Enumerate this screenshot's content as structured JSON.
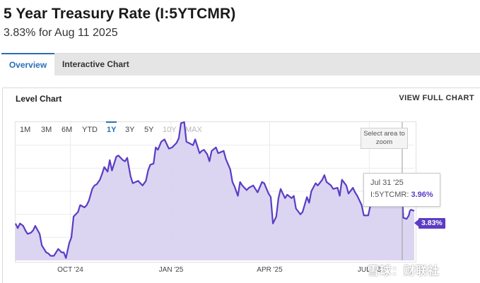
{
  "page": {
    "title": "5 Year Treasury Rate (I:5YTCMR)",
    "subtitle": "3.83% for Aug 11 2025"
  },
  "tabs": [
    {
      "label": "Overview",
      "active": true
    },
    {
      "label": "Interactive Chart",
      "active": false
    }
  ],
  "panel": {
    "title": "Level Chart",
    "view_full": "VIEW FULL CHART"
  },
  "ranges": [
    {
      "label": "1M",
      "state": "normal"
    },
    {
      "label": "3M",
      "state": "normal"
    },
    {
      "label": "6M",
      "state": "normal"
    },
    {
      "label": "YTD",
      "state": "normal"
    },
    {
      "label": "1Y",
      "state": "selected"
    },
    {
      "label": "3Y",
      "state": "normal"
    },
    {
      "label": "5Y",
      "state": "normal"
    },
    {
      "label": "10Y",
      "state": "disabled"
    },
    {
      "label": "MAX",
      "state": "disabled"
    }
  ],
  "zoom_hint": "Select area to zoom",
  "tooltip": {
    "date": "Jul 31 '25",
    "series_label": "I:5YTCMR:",
    "value": "3.96%"
  },
  "last_value_label": "3.83%",
  "watermark": "雪球：财联社",
  "colors": {
    "line": "#5b3cc4",
    "fill": "#d8d0f1",
    "accent": "#2a6fb5"
  },
  "chart_data": {
    "type": "area",
    "series_name": "I:5YTCMR",
    "y_unit": "%",
    "ylim": [
      3.4,
      4.6
    ],
    "grid": true,
    "x_tick_labels": [
      "OCT '24",
      "JAN '25",
      "APR '25",
      "JUL '25"
    ],
    "points": [
      [
        "2024-08-12",
        3.72
      ],
      [
        "2024-08-14",
        3.68
      ],
      [
        "2024-08-16",
        3.72
      ],
      [
        "2024-08-19",
        3.7
      ],
      [
        "2024-08-21",
        3.66
      ],
      [
        "2024-08-23",
        3.63
      ],
      [
        "2024-08-26",
        3.64
      ],
      [
        "2024-08-28",
        3.66
      ],
      [
        "2024-08-30",
        3.7
      ],
      [
        "2024-09-03",
        3.63
      ],
      [
        "2024-09-05",
        3.53
      ],
      [
        "2024-09-09",
        3.47
      ],
      [
        "2024-09-11",
        3.46
      ],
      [
        "2024-09-13",
        3.44
      ],
      [
        "2024-09-16",
        3.44
      ],
      [
        "2024-09-18",
        3.47
      ],
      [
        "2024-09-20",
        3.5
      ],
      [
        "2024-09-23",
        3.47
      ],
      [
        "2024-09-25",
        3.47
      ],
      [
        "2024-09-27",
        3.42
      ],
      [
        "2024-09-30",
        3.55
      ],
      [
        "2024-10-02",
        3.6
      ],
      [
        "2024-10-04",
        3.78
      ],
      [
        "2024-10-08",
        3.82
      ],
      [
        "2024-10-10",
        3.88
      ],
      [
        "2024-10-14",
        3.86
      ],
      [
        "2024-10-16",
        3.88
      ],
      [
        "2024-10-18",
        3.92
      ],
      [
        "2024-10-21",
        4.02
      ],
      [
        "2024-10-23",
        4.05
      ],
      [
        "2024-10-25",
        4.06
      ],
      [
        "2024-10-28",
        4.1
      ],
      [
        "2024-10-30",
        4.15
      ],
      [
        "2024-11-01",
        4.21
      ],
      [
        "2024-11-04",
        4.17
      ],
      [
        "2024-11-06",
        4.27
      ],
      [
        "2024-11-08",
        4.18
      ],
      [
        "2024-11-12",
        4.3
      ],
      [
        "2024-11-14",
        4.31
      ],
      [
        "2024-11-18",
        4.27
      ],
      [
        "2024-11-20",
        4.26
      ],
      [
        "2024-11-22",
        4.29
      ],
      [
        "2024-11-25",
        4.13
      ],
      [
        "2024-11-27",
        4.07
      ],
      [
        "2024-12-02",
        4.09
      ],
      [
        "2024-12-04",
        4.07
      ],
      [
        "2024-12-06",
        4.05
      ],
      [
        "2024-12-09",
        4.09
      ],
      [
        "2024-12-11",
        4.18
      ],
      [
        "2024-12-13",
        4.23
      ],
      [
        "2024-12-16",
        4.24
      ],
      [
        "2024-12-18",
        4.38
      ],
      [
        "2024-12-20",
        4.36
      ],
      [
        "2024-12-23",
        4.43
      ],
      [
        "2024-12-26",
        4.45
      ],
      [
        "2024-12-30",
        4.37
      ],
      [
        "2025-01-02",
        4.38
      ],
      [
        "2025-01-06",
        4.42
      ],
      [
        "2025-01-08",
        4.46
      ],
      [
        "2025-01-10",
        4.59
      ],
      [
        "2025-01-13",
        4.6
      ],
      [
        "2025-01-15",
        4.43
      ],
      [
        "2025-01-17",
        4.42
      ],
      [
        "2025-01-21",
        4.4
      ],
      [
        "2025-01-23",
        4.45
      ],
      [
        "2025-01-27",
        4.33
      ],
      [
        "2025-01-29",
        4.35
      ],
      [
        "2025-01-31",
        4.36
      ],
      [
        "2025-02-03",
        4.32
      ],
      [
        "2025-02-05",
        4.26
      ],
      [
        "2025-02-07",
        4.35
      ],
      [
        "2025-02-11",
        4.38
      ],
      [
        "2025-02-13",
        4.33
      ],
      [
        "2025-02-18",
        4.35
      ],
      [
        "2025-02-20",
        4.28
      ],
      [
        "2025-02-24",
        4.19
      ],
      [
        "2025-02-26",
        4.08
      ],
      [
        "2025-02-28",
        4.04
      ],
      [
        "2025-03-03",
        3.96
      ],
      [
        "2025-03-05",
        4.08
      ],
      [
        "2025-03-07",
        4.05
      ],
      [
        "2025-03-11",
        4.01
      ],
      [
        "2025-03-13",
        4.03
      ],
      [
        "2025-03-17",
        4.05
      ],
      [
        "2025-03-19",
        4.02
      ],
      [
        "2025-03-21",
        3.99
      ],
      [
        "2025-03-25",
        4.08
      ],
      [
        "2025-03-27",
        4.07
      ],
      [
        "2025-03-31",
        3.98
      ],
      [
        "2025-04-02",
        3.95
      ],
      [
        "2025-04-04",
        3.72
      ],
      [
        "2025-04-07",
        3.78
      ],
      [
        "2025-04-09",
        3.94
      ],
      [
        "2025-04-11",
        4.02
      ],
      [
        "2025-04-15",
        3.94
      ],
      [
        "2025-04-17",
        3.97
      ],
      [
        "2025-04-21",
        3.94
      ],
      [
        "2025-04-23",
        3.96
      ],
      [
        "2025-04-25",
        3.85
      ],
      [
        "2025-04-29",
        3.8
      ],
      [
        "2025-05-01",
        3.82
      ],
      [
        "2025-05-05",
        3.95
      ],
      [
        "2025-05-07",
        3.9
      ],
      [
        "2025-05-09",
        4.0
      ],
      [
        "2025-05-13",
        4.07
      ],
      [
        "2025-05-15",
        4.05
      ],
      [
        "2025-05-19",
        4.1
      ],
      [
        "2025-05-21",
        4.14
      ],
      [
        "2025-05-23",
        4.08
      ],
      [
        "2025-05-27",
        4.05
      ],
      [
        "2025-05-29",
        4.02
      ],
      [
        "2025-06-02",
        4.03
      ],
      [
        "2025-06-04",
        3.96
      ],
      [
        "2025-06-06",
        4.1
      ],
      [
        "2025-06-10",
        4.05
      ],
      [
        "2025-06-12",
        3.98
      ],
      [
        "2025-06-16",
        4.03
      ],
      [
        "2025-06-18",
        3.99
      ],
      [
        "2025-06-20",
        3.96
      ],
      [
        "2025-06-24",
        3.88
      ],
      [
        "2025-06-26",
        3.79
      ],
      [
        "2025-06-30",
        3.79
      ],
      [
        "2025-07-02",
        3.88
      ],
      [
        "2025-07-03",
        3.93
      ],
      [
        "2025-07-08",
        3.96
      ],
      [
        "2025-07-10",
        3.97
      ],
      [
        "2025-07-14",
        3.98
      ],
      [
        "2025-07-16",
        3.94
      ],
      [
        "2025-07-18",
        3.93
      ],
      [
        "2025-07-22",
        3.9
      ],
      [
        "2025-07-24",
        3.97
      ],
      [
        "2025-07-28",
        3.95
      ],
      [
        "2025-07-30",
        3.92
      ],
      [
        "2025-07-31",
        3.96
      ],
      [
        "2025-08-01",
        3.77
      ],
      [
        "2025-08-04",
        3.76
      ],
      [
        "2025-08-06",
        3.79
      ],
      [
        "2025-08-07",
        3.83
      ],
      [
        "2025-08-08",
        3.84
      ],
      [
        "2025-08-11",
        3.83
      ]
    ],
    "ticks": [
      {
        "label": "OCT '24",
        "date": "2024-10-01"
      },
      {
        "label": "JAN '25",
        "date": "2025-01-01"
      },
      {
        "label": "APR '25",
        "date": "2025-04-01"
      },
      {
        "label": "JUL '25",
        "date": "2025-07-01"
      }
    ],
    "highlight": {
      "date": "2025-07-31",
      "value": 3.96
    },
    "last": {
      "date": "2025-08-11",
      "value": 3.83
    }
  }
}
